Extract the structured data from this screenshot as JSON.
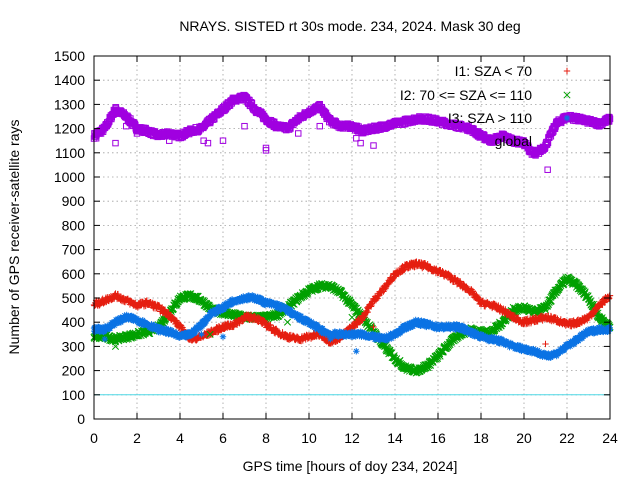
{
  "chart_data": {
    "type": "scatter",
    "title": "NRAYS. SISTED rt 30s mode. 234, 2024. Mask 30 deg",
    "xlabel": "GPS time [hours of doy 234, 2024]",
    "ylabel": "Number of GPS receiver-satellite rays",
    "xlim": [
      0,
      24
    ],
    "ylim": [
      0,
      1500
    ],
    "xticks": [
      0,
      2,
      4,
      6,
      8,
      10,
      12,
      14,
      16,
      18,
      20,
      22,
      24
    ],
    "yticks": [
      0,
      100,
      200,
      300,
      400,
      500,
      600,
      700,
      800,
      900,
      1000,
      1100,
      1200,
      1300,
      1400,
      1500
    ],
    "grid": true,
    "legend_position": "top-right",
    "series": [
      {
        "name": "I1: SZA < 70",
        "marker": "+",
        "color": "#e51e10",
        "points": [
          [
            0,
            470
          ],
          [
            0.5,
            490
          ],
          [
            1,
            510
          ],
          [
            1.5,
            490
          ],
          [
            2,
            470
          ],
          [
            2.5,
            480
          ],
          [
            3,
            460
          ],
          [
            3.5,
            430
          ],
          [
            4,
            380
          ],
          [
            4.5,
            330
          ],
          [
            5,
            340
          ],
          [
            5.5,
            360
          ],
          [
            6,
            380
          ],
          [
            6.5,
            390
          ],
          [
            7,
            420
          ],
          [
            7.5,
            420
          ],
          [
            8,
            390
          ],
          [
            8.5,
            360
          ],
          [
            9,
            340
          ],
          [
            9.5,
            330
          ],
          [
            10,
            340
          ],
          [
            10.5,
            350
          ],
          [
            11,
            320
          ],
          [
            11.5,
            340
          ],
          [
            12,
            380
          ],
          [
            12.5,
            420
          ],
          [
            13,
            490
          ],
          [
            13.5,
            540
          ],
          [
            14,
            600
          ],
          [
            14.5,
            630
          ],
          [
            15,
            640
          ],
          [
            15.5,
            630
          ],
          [
            16,
            610
          ],
          [
            16.5,
            590
          ],
          [
            17,
            560
          ],
          [
            17.5,
            530
          ],
          [
            18,
            480
          ],
          [
            18.5,
            470
          ],
          [
            19,
            450
          ],
          [
            19.5,
            420
          ],
          [
            20,
            400
          ],
          [
            20.5,
            410
          ],
          [
            21,
            420
          ],
          [
            21.5,
            410
          ],
          [
            22,
            390
          ],
          [
            22.5,
            400
          ],
          [
            23,
            420
          ],
          [
            23.5,
            470
          ],
          [
            24,
            510
          ]
        ]
      },
      {
        "name": "I2: 70 <= SZA <= 110",
        "marker": "x",
        "color": "#00a000",
        "points": [
          [
            0,
            340
          ],
          [
            0.5,
            340
          ],
          [
            1,
            330
          ],
          [
            1.5,
            340
          ],
          [
            2,
            350
          ],
          [
            2.5,
            360
          ],
          [
            3,
            380
          ],
          [
            3.5,
            440
          ],
          [
            4,
            500
          ],
          [
            4.5,
            510
          ],
          [
            5,
            490
          ],
          [
            5.5,
            450
          ],
          [
            6,
            440
          ],
          [
            6.5,
            430
          ],
          [
            7,
            420
          ],
          [
            7.5,
            420
          ],
          [
            8,
            420
          ],
          [
            8.5,
            430
          ],
          [
            9,
            460
          ],
          [
            9.5,
            500
          ],
          [
            10,
            530
          ],
          [
            10.5,
            550
          ],
          [
            11,
            550
          ],
          [
            11.5,
            520
          ],
          [
            12,
            470
          ],
          [
            12.5,
            420
          ],
          [
            13,
            360
          ],
          [
            13.5,
            300
          ],
          [
            14,
            250
          ],
          [
            14.5,
            210
          ],
          [
            15,
            200
          ],
          [
            15.5,
            220
          ],
          [
            16,
            260
          ],
          [
            16.5,
            310
          ],
          [
            17,
            350
          ],
          [
            17.5,
            370
          ],
          [
            18,
            360
          ],
          [
            18.5,
            360
          ],
          [
            19,
            400
          ],
          [
            19.5,
            450
          ],
          [
            20,
            460
          ],
          [
            20.5,
            440
          ],
          [
            21,
            460
          ],
          [
            21.5,
            530
          ],
          [
            22,
            580
          ],
          [
            22.5,
            550
          ],
          [
            23,
            500
          ],
          [
            23.5,
            420
          ],
          [
            24,
            380
          ]
        ]
      },
      {
        "name": "I3: SZA > 110",
        "marker": "*",
        "color": "#0b73e4",
        "points": [
          [
            0,
            370
          ],
          [
            0.5,
            370
          ],
          [
            1,
            400
          ],
          [
            1.5,
            420
          ],
          [
            2,
            410
          ],
          [
            2.5,
            390
          ],
          [
            3,
            370
          ],
          [
            3.5,
            360
          ],
          [
            4,
            340
          ],
          [
            4.5,
            350
          ],
          [
            5,
            390
          ],
          [
            5.5,
            440
          ],
          [
            6,
            460
          ],
          [
            6.5,
            490
          ],
          [
            7,
            500
          ],
          [
            7.5,
            500
          ],
          [
            8,
            480
          ],
          [
            8.5,
            470
          ],
          [
            9,
            450
          ],
          [
            9.5,
            420
          ],
          [
            10,
            400
          ],
          [
            10.5,
            370
          ],
          [
            11,
            350
          ],
          [
            11.5,
            350
          ],
          [
            12,
            350
          ],
          [
            12.5,
            350
          ],
          [
            13,
            340
          ],
          [
            13.5,
            330
          ],
          [
            14,
            350
          ],
          [
            14.5,
            380
          ],
          [
            15,
            400
          ],
          [
            15.5,
            390
          ],
          [
            16,
            380
          ],
          [
            16.5,
            380
          ],
          [
            17,
            380
          ],
          [
            17.5,
            360
          ],
          [
            18,
            340
          ],
          [
            18.5,
            330
          ],
          [
            19,
            320
          ],
          [
            19.5,
            300
          ],
          [
            20,
            290
          ],
          [
            20.5,
            280
          ],
          [
            21,
            260
          ],
          [
            21.5,
            270
          ],
          [
            22,
            300
          ],
          [
            22.5,
            330
          ],
          [
            23,
            360
          ],
          [
            23.5,
            370
          ],
          [
            24,
            370
          ]
        ]
      },
      {
        "name": "global",
        "marker": "square",
        "color": "#a000e0",
        "points": [
          [
            0,
            1170
          ],
          [
            0.5,
            1200
          ],
          [
            1,
            1280
          ],
          [
            1.5,
            1250
          ],
          [
            2,
            1200
          ],
          [
            2.5,
            1190
          ],
          [
            3,
            1170
          ],
          [
            3.5,
            1180
          ],
          [
            4,
            1170
          ],
          [
            4.5,
            1190
          ],
          [
            5,
            1200
          ],
          [
            5.5,
            1240
          ],
          [
            6,
            1280
          ],
          [
            6.5,
            1320
          ],
          [
            7,
            1330
          ],
          [
            7.5,
            1280
          ],
          [
            8,
            1240
          ],
          [
            8.5,
            1210
          ],
          [
            9,
            1200
          ],
          [
            9.5,
            1240
          ],
          [
            10,
            1270
          ],
          [
            10.5,
            1290
          ],
          [
            11,
            1230
          ],
          [
            11.5,
            1210
          ],
          [
            12,
            1210
          ],
          [
            12.5,
            1190
          ],
          [
            13,
            1200
          ],
          [
            13.5,
            1210
          ],
          [
            14,
            1220
          ],
          [
            14.5,
            1230
          ],
          [
            15,
            1240
          ],
          [
            15.5,
            1240
          ],
          [
            16,
            1230
          ],
          [
            16.5,
            1220
          ],
          [
            17,
            1210
          ],
          [
            17.5,
            1200
          ],
          [
            18,
            1170
          ],
          [
            18.5,
            1150
          ],
          [
            19,
            1170
          ],
          [
            19.5,
            1150
          ],
          [
            20,
            1140
          ],
          [
            20.5,
            1090
          ],
          [
            21,
            1130
          ],
          [
            21.5,
            1220
          ],
          [
            22,
            1250
          ],
          [
            22.5,
            1240
          ],
          [
            23,
            1230
          ],
          [
            23.5,
            1220
          ],
          [
            24,
            1240
          ]
        ]
      }
    ],
    "reference_lines": [
      {
        "y": 100,
        "color": "#4fd8e6"
      }
    ],
    "outliers": [
      {
        "series": "global",
        "points": [
          [
            0.1,
            1160
          ],
          [
            1,
            1140
          ],
          [
            1.5,
            1210
          ],
          [
            2,
            1180
          ],
          [
            3.5,
            1150
          ],
          [
            5.1,
            1150
          ],
          [
            5.3,
            1140
          ],
          [
            6,
            1150
          ],
          [
            7,
            1210
          ],
          [
            8,
            1120
          ],
          [
            8,
            1110
          ],
          [
            9.5,
            1180
          ],
          [
            10.5,
            1210
          ],
          [
            12.2,
            1160
          ],
          [
            12.4,
            1140
          ],
          [
            13,
            1130
          ],
          [
            14,
            1230
          ],
          [
            21.1,
            1030
          ]
        ]
      },
      {
        "series": "I1: SZA < 70",
        "points": [
          [
            0.1,
            490
          ],
          [
            13,
            380
          ],
          [
            21,
            310
          ]
        ]
      },
      {
        "series": "I2: 70 <= SZA <= 110",
        "points": [
          [
            1,
            300
          ],
          [
            5.4,
            350
          ],
          [
            9,
            400
          ],
          [
            12,
            420
          ]
        ]
      },
      {
        "series": "I3: SZA > 110",
        "points": [
          [
            0.5,
            330
          ],
          [
            5,
            350
          ],
          [
            6,
            340
          ],
          [
            12.2,
            280
          ],
          [
            11,
            330
          ]
        ]
      }
    ]
  }
}
